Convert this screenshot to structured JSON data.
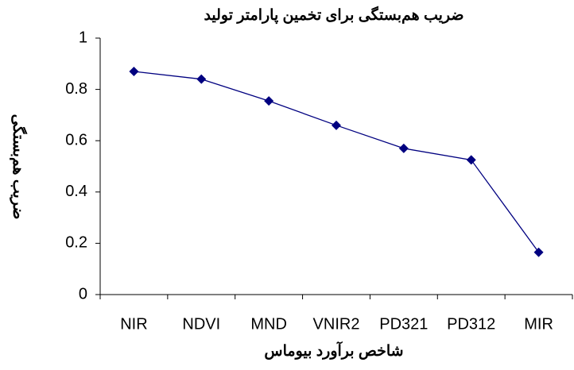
{
  "chart_data": {
    "type": "line",
    "title": "ضریب هم‌بستگی برای تخمین پارامتر تولید",
    "x_label": "شاخص برآورد بیوماس",
    "y_label": "ضریب هم‌بستگی",
    "categories": [
      "NIR",
      "NDVI",
      "MND",
      "VNIR2",
      "PD321",
      "PD312",
      "MIR"
    ],
    "series": [
      {
        "name": "ضریب هم‌بستگی",
        "color": "#000080",
        "values": [
          0.87,
          0.84,
          0.755,
          0.66,
          0.57,
          0.525,
          0.165
        ]
      }
    ],
    "ylim": [
      0,
      1
    ],
    "yticks": [
      0,
      0.2,
      0.4,
      0.6,
      0.8,
      1
    ],
    "grid": false,
    "legend": false
  }
}
